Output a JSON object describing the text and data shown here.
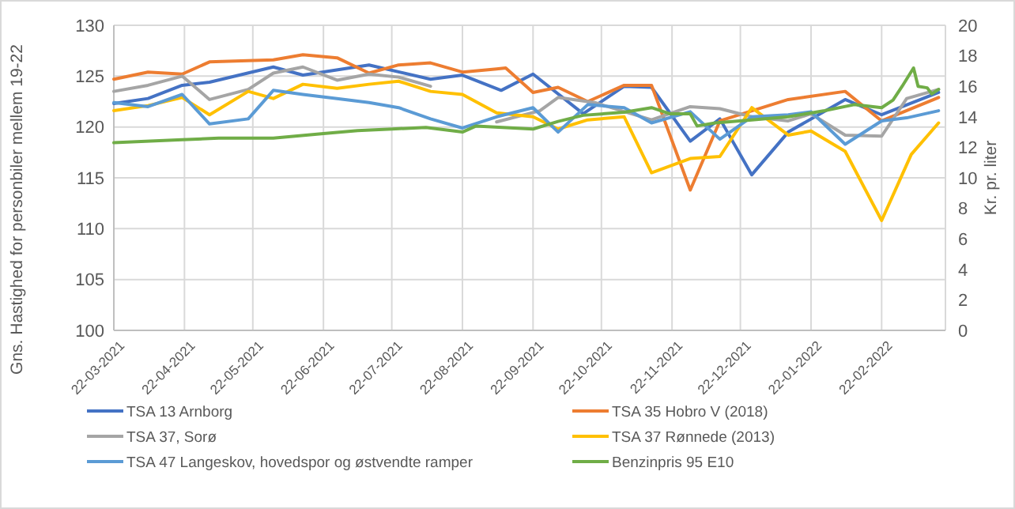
{
  "chart_data": {
    "type": "line",
    "ylabel": "Gns. Hastighed for personbiler mellem 19-22",
    "y2label": "Kr. pr. liter",
    "xlim": [
      "2021-03-22",
      "2022-03-22"
    ],
    "xticks": [
      {
        "value": "2021-03-22",
        "label": "22-03-2021"
      },
      {
        "value": "2021-04-22",
        "label": "22-04-2021"
      },
      {
        "value": "2021-05-22",
        "label": "22-05-2021"
      },
      {
        "value": "2021-06-22",
        "label": "22-06-2021"
      },
      {
        "value": "2021-07-22",
        "label": "22-07-2021"
      },
      {
        "value": "2021-08-22",
        "label": "22-08-2021"
      },
      {
        "value": "2021-09-22",
        "label": "22-09-2021"
      },
      {
        "value": "2021-10-22",
        "label": "22-10-2021"
      },
      {
        "value": "2021-11-22",
        "label": "22-11-2021"
      },
      {
        "value": "2021-12-22",
        "label": "22-12-2021"
      },
      {
        "value": "2022-01-22",
        "label": "22-01-2022"
      },
      {
        "value": "2022-02-22",
        "label": "22-02-2022"
      }
    ],
    "ylim": [
      100,
      130
    ],
    "yticks": [
      100,
      105,
      110,
      115,
      120,
      125,
      130
    ],
    "y2lim": [
      0,
      20
    ],
    "y2ticks": [
      0,
      2,
      4,
      6,
      8,
      10,
      12,
      14,
      16,
      18,
      20
    ],
    "grid": true,
    "legend": "bottom",
    "line_style": "solid",
    "marker": "none",
    "series": [
      {
        "name": "TSA 13 Arnborg",
        "color": "#4472c4",
        "x": [
          "2021-03-22",
          "2021-04-06",
          "2021-04-21",
          "2021-05-03",
          "2021-05-31",
          "2021-06-13",
          "2021-07-12",
          "2021-08-08",
          "2021-08-22",
          "2021-09-08",
          "2021-09-22",
          "2021-10-14",
          "2021-11-01",
          "2021-11-13",
          "2021-11-30",
          "2021-12-13",
          "2021-12-27",
          "2022-01-12",
          "2022-02-06",
          "2022-02-22",
          "2022-03-19"
        ],
        "values": [
          122.3,
          122.8,
          124.1,
          124.4,
          125.9,
          125.1,
          126.1,
          124.7,
          125.1,
          123.6,
          125.2,
          121.3,
          124,
          123.9,
          118.6,
          120.8,
          115.3,
          119.5,
          122.7,
          121.2,
          123.4
        ]
      },
      {
        "name": "TSA 35 Hobro V (2018)",
        "color": "#ed7d31",
        "x": [
          "2021-03-22",
          "2021-04-06",
          "2021-04-21",
          "2021-05-03",
          "2021-05-31",
          "2021-06-13",
          "2021-06-28",
          "2021-07-12",
          "2021-07-25",
          "2021-08-08",
          "2021-08-22",
          "2021-09-06",
          "2021-09-10",
          "2021-09-22",
          "2021-10-03",
          "2021-10-16",
          "2021-11-01",
          "2021-11-13",
          "2021-11-30",
          "2021-12-13",
          "2022-01-12",
          "2022-02-06",
          "2022-02-22",
          "2022-03-19"
        ],
        "values": [
          124.7,
          125.4,
          125.2,
          126.4,
          126.6,
          127.1,
          126.8,
          125.3,
          126.1,
          126.3,
          125.4,
          125.7,
          125.8,
          123.4,
          123.9,
          122.5,
          124.1,
          124.1,
          113.8,
          120.6,
          122.7,
          123.5,
          120.6,
          122.9
        ]
      },
      {
        "name": "TSA 37, Sorø",
        "color": "#a5a5a5",
        "x": [
          "2021-03-22",
          "2021-04-06",
          "2021-04-21",
          "2021-05-03",
          "2021-05-20",
          "2021-05-31",
          "2021-06-13",
          "2021-06-28",
          "2021-07-12",
          "2021-07-25",
          "2021-08-08",
          "2021-08-22",
          "2021-09-06",
          "2021-09-25",
          "2021-10-03",
          "2021-10-19",
          "2021-11-13",
          "2021-11-30",
          "2021-12-13",
          "2021-12-27",
          "2022-01-12",
          "2022-01-22",
          "2022-02-06",
          "2022-02-22",
          "2022-03-05",
          "2022-03-19"
        ],
        "values": [
          123.5,
          124.1,
          125,
          122.7,
          123.7,
          125.3,
          125.9,
          124.6,
          125.2,
          124.9,
          124,
          null,
          120.5,
          121.6,
          122.9,
          122.4,
          120.7,
          122,
          121.8,
          121,
          120.6,
          121.3,
          119.2,
          119.1,
          122.8,
          123.7
        ]
      },
      {
        "name": "TSA 37 Rønnede (2013)",
        "color": "#ffc000",
        "x": [
          "2021-03-22",
          "2021-04-06",
          "2021-04-21",
          "2021-05-03",
          "2021-05-20",
          "2021-05-31",
          "2021-06-13",
          "2021-06-28",
          "2021-07-12",
          "2021-07-25",
          "2021-08-08",
          "2021-08-22",
          "2021-09-06",
          "2021-09-22",
          "2021-10-03",
          "2021-10-16",
          "2021-11-01",
          "2021-11-13",
          "2021-11-30",
          "2021-12-13",
          "2021-12-27",
          "2022-01-12",
          "2022-01-22",
          "2022-02-06",
          "2022-02-22",
          "2022-03-07",
          "2022-03-19"
        ],
        "values": [
          121.6,
          122.1,
          122.9,
          121.2,
          123.5,
          122.8,
          124.2,
          123.8,
          124.2,
          124.5,
          123.5,
          123.2,
          121.4,
          121,
          119.8,
          120.7,
          121,
          115.5,
          116.9,
          117.1,
          121.9,
          119.2,
          119.6,
          117.6,
          110.8,
          117.3,
          120.4
        ]
      },
      {
        "name": "TSA 47 Langeskov, hovedspor og østvendte ramper",
        "color": "#5b9bd5",
        "x": [
          "2021-03-22",
          "2021-04-06",
          "2021-04-21",
          "2021-05-03",
          "2021-05-20",
          "2021-05-31",
          "2021-06-13",
          "2021-06-28",
          "2021-07-12",
          "2021-07-25",
          "2021-08-08",
          "2021-08-22",
          "2021-09-06",
          "2021-09-22",
          "2021-10-03",
          "2021-10-16",
          "2021-11-01",
          "2021-11-13",
          "2021-11-30",
          "2021-12-13",
          "2021-12-27",
          "2022-01-12",
          "2022-01-22",
          "2022-02-06",
          "2022-02-22",
          "2022-03-05",
          "2022-03-19"
        ],
        "values": [
          122.4,
          122,
          123.2,
          120.3,
          120.8,
          123.6,
          123.2,
          122.8,
          122.4,
          121.9,
          120.8,
          119.9,
          121,
          121.9,
          119.5,
          122.2,
          121.9,
          120.4,
          121.5,
          118.8,
          121,
          121.2,
          121.5,
          118.3,
          120.6,
          120.9,
          121.6
        ]
      },
      {
        "name": "Benzinpris 95 E10",
        "color": "#70ad47",
        "axis": "y2",
        "x": [
          "2021-03-22",
          "2021-04-21",
          "2021-05-07",
          "2021-05-31",
          "2021-06-22",
          "2021-07-07",
          "2021-07-22",
          "2021-08-06",
          "2021-08-22",
          "2021-08-28",
          "2021-09-22",
          "2021-10-03",
          "2021-10-14",
          "2021-11-01",
          "2021-11-13",
          "2021-11-21",
          "2021-11-30",
          "2021-12-03",
          "2021-12-11",
          "2021-12-27",
          "2022-01-12",
          "2022-01-28",
          "2022-02-10",
          "2022-02-22",
          "2022-02-27",
          "2022-03-03",
          "2022-03-08",
          "2022-03-10",
          "2022-03-14",
          "2022-03-16",
          "2022-03-19"
        ],
        "values": [
          12.3,
          12.5,
          12.6,
          12.6,
          12.9,
          13.1,
          13.2,
          13.3,
          13.0,
          13.4,
          13.2,
          13.7,
          14.1,
          14.3,
          14.6,
          14.2,
          14.2,
          13.4,
          13.6,
          13.8,
          14.0,
          14.4,
          14.8,
          14.6,
          15.1,
          16,
          17.2,
          16,
          15.9,
          15.5,
          15.8
        ]
      }
    ]
  }
}
